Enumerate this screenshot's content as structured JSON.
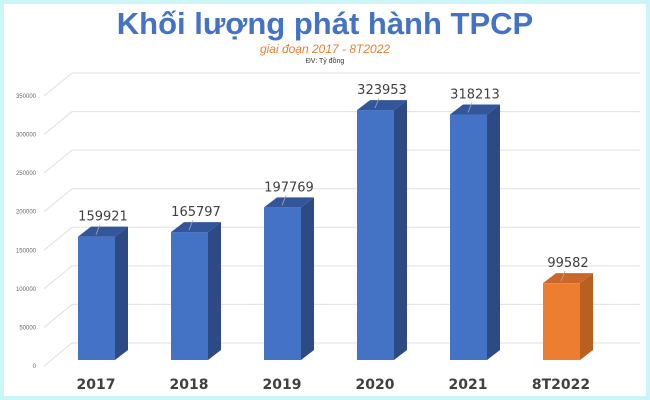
{
  "chart_data": {
    "type": "bar",
    "title": "Khối lượng phát hành TPCP",
    "subtitle": "giai đoạn 2017 - 8T2022",
    "unit_label": "ĐV: Tỷ đồng",
    "categories": [
      "2017",
      "2018",
      "2019",
      "2020",
      "2021",
      "8T2022"
    ],
    "values": [
      159921,
      165797,
      197769,
      323953,
      318213,
      99582
    ],
    "ylim": [
      0,
      350000
    ],
    "yticks": [
      0,
      50000,
      100000,
      150000,
      200000,
      250000,
      300000,
      350000
    ],
    "grid": true,
    "legend": "none",
    "bar_colors": [
      "#4472c4",
      "#4472c4",
      "#4472c4",
      "#4472c4",
      "#4472c4",
      "#ed7d31"
    ],
    "three_d": true
  }
}
